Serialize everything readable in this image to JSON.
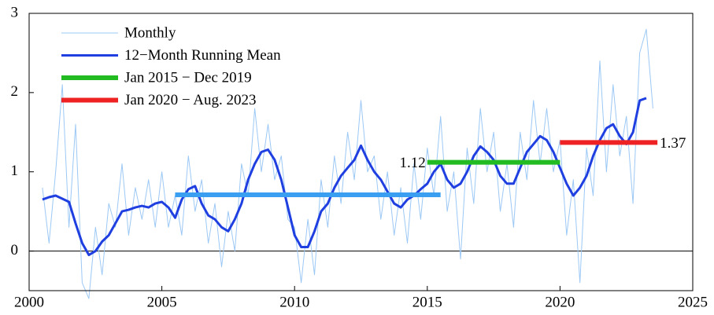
{
  "chart_data": {
    "type": "line",
    "x": [
      2000.5,
      2000.75,
      2001,
      2001.25,
      2001.5,
      2001.75,
      2002,
      2002.25,
      2002.5,
      2002.75,
      2003,
      2003.25,
      2003.5,
      2003.75,
      2004,
      2004.25,
      2004.5,
      2004.75,
      2005,
      2005.25,
      2005.5,
      2005.75,
      2006,
      2006.25,
      2006.5,
      2006.75,
      2007,
      2007.25,
      2007.5,
      2007.75,
      2008,
      2008.25,
      2008.5,
      2008.75,
      2009,
      2009.25,
      2009.5,
      2009.75,
      2010,
      2010.25,
      2010.5,
      2010.75,
      2011,
      2011.25,
      2011.5,
      2011.75,
      2012,
      2012.25,
      2012.5,
      2012.75,
      2013,
      2013.25,
      2013.5,
      2013.75,
      2014,
      2014.25,
      2014.5,
      2014.75,
      2015,
      2015.25,
      2015.5,
      2015.75,
      2016,
      2016.25,
      2016.5,
      2016.75,
      2017,
      2017.25,
      2017.5,
      2017.75,
      2018,
      2018.25,
      2018.5,
      2018.75,
      2019,
      2019.25,
      2019.5,
      2019.75,
      2020,
      2020.25,
      2020.5,
      2020.75,
      2021,
      2021.25,
      2021.5,
      2021.75,
      2022,
      2022.25,
      2022.5,
      2022.75,
      2023,
      2023.25,
      2023.5
    ],
    "series": [
      {
        "name": "Monthly",
        "color": "#9cc8f5",
        "width": 1,
        "values": [
          0.8,
          0.1,
          1.0,
          2.1,
          0.3,
          1.6,
          -0.4,
          -0.6,
          0.3,
          -0.3,
          0.6,
          0.3,
          1.1,
          0.2,
          0.8,
          0.4,
          0.9,
          0.3,
          1.0,
          0.3,
          0.7,
          0.2,
          1.2,
          0.5,
          0.9,
          0.1,
          0.6,
          -0.2,
          0.5,
          0.0,
          1.1,
          0.7,
          1.8,
          1.0,
          1.6,
          0.9,
          1.2,
          0.4,
          0.3,
          -0.4,
          0.4,
          -0.3,
          0.9,
          0.3,
          1.2,
          0.6,
          1.5,
          0.9,
          1.9,
          1.0,
          1.2,
          0.4,
          1.0,
          0.2,
          0.8,
          0.1,
          1.1,
          0.4,
          1.3,
          0.7,
          1.7,
          0.5,
          1.0,
          -0.1,
          1.3,
          0.6,
          1.8,
          1.0,
          1.5,
          0.5,
          1.1,
          0.3,
          1.5,
          0.9,
          1.9,
          1.1,
          1.8,
          1.0,
          1.4,
          0.2,
          0.9,
          -0.4,
          1.3,
          0.7,
          2.4,
          1.0,
          2.1,
          1.2,
          1.7,
          0.6,
          2.5,
          2.8,
          1.8
        ]
      },
      {
        "name": "12−Month Running Mean",
        "color": "#1f3fe0",
        "width": 3,
        "values": [
          0.65,
          0.68,
          0.7,
          0.66,
          0.62,
          0.35,
          0.1,
          -0.05,
          0.0,
          0.12,
          0.2,
          0.35,
          0.5,
          0.52,
          0.55,
          0.57,
          0.55,
          0.6,
          0.62,
          0.55,
          0.42,
          0.65,
          0.78,
          0.82,
          0.6,
          0.45,
          0.4,
          0.3,
          0.25,
          0.4,
          0.6,
          0.9,
          1.1,
          1.25,
          1.28,
          1.15,
          0.9,
          0.55,
          0.2,
          0.05,
          0.05,
          0.25,
          0.5,
          0.6,
          0.8,
          0.95,
          1.05,
          1.15,
          1.33,
          1.15,
          1.0,
          0.9,
          0.75,
          0.6,
          0.55,
          0.65,
          0.7,
          0.78,
          0.85,
          1.0,
          1.1,
          0.9,
          0.8,
          0.85,
          1.0,
          1.2,
          1.32,
          1.25,
          1.15,
          0.95,
          0.85,
          0.85,
          1.05,
          1.25,
          1.35,
          1.45,
          1.4,
          1.25,
          1.05,
          0.85,
          0.7,
          0.8,
          0.95,
          1.2,
          1.4,
          1.55,
          1.6,
          1.45,
          1.35,
          1.5,
          1.9,
          1.93,
          null
        ]
      }
    ],
    "period_means": [
      {
        "color": "#3a9ff0",
        "x": [
          2005.5,
          2015.5
        ],
        "value": 0.71
      },
      {
        "name": "Jan 2015 − Dec 2019",
        "color": "#22bb22",
        "x": [
          2015,
          2020
        ],
        "value": 1.12,
        "label_side": "left"
      },
      {
        "name": "Jan 2020 − Aug. 2023",
        "color": "#ee2222",
        "x": [
          2020,
          2023.67
        ],
        "value": 1.37,
        "label_side": "right"
      }
    ],
    "xlim": [
      2000,
      2025
    ],
    "xticks": [
      2000,
      2005,
      2010,
      2015,
      2020,
      2025
    ],
    "ylim": [
      -0.5,
      3
    ],
    "yticks": [
      0,
      1,
      2,
      3
    ],
    "legend": "upper left"
  }
}
